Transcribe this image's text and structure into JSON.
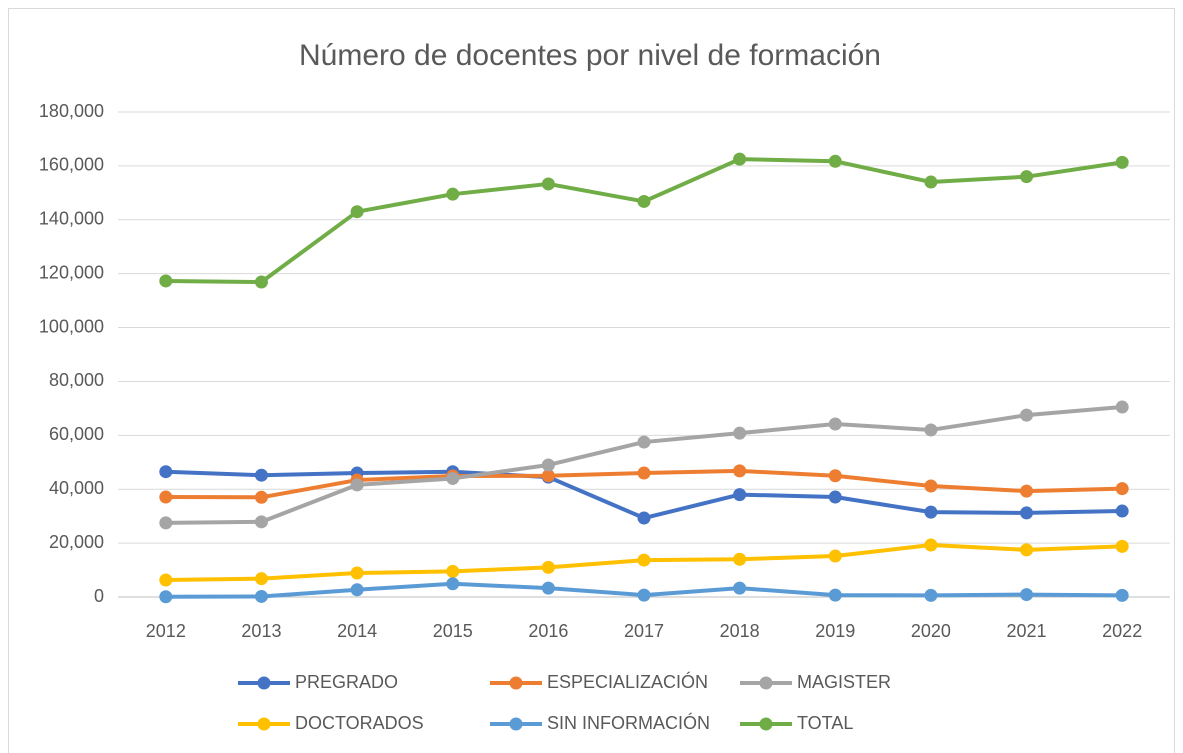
{
  "chart_data": {
    "type": "line",
    "title": "Número de docentes por nivel de formación",
    "categories": [
      "2012",
      "2013",
      "2014",
      "2015",
      "2016",
      "2017",
      "2018",
      "2019",
      "2020",
      "2021",
      "2022"
    ],
    "series": [
      {
        "name": "PREGRADO",
        "color": "#4472c4",
        "values": [
          46500,
          45200,
          46000,
          46500,
          44500,
          29300,
          38000,
          37100,
          31500,
          31200,
          31900
        ]
      },
      {
        "name": "ESPECIALIZACIÓN",
        "color": "#ed7d31",
        "values": [
          37100,
          37000,
          43400,
          44900,
          45000,
          46000,
          46800,
          45000,
          41200,
          39300,
          40200
        ]
      },
      {
        "name": "MAGISTER",
        "color": "#a5a5a5",
        "values": [
          27500,
          27900,
          41600,
          44000,
          49000,
          57500,
          60800,
          64200,
          62000,
          67500,
          70500
        ]
      },
      {
        "name": "DOCTORADOS",
        "color": "#ffc000",
        "values": [
          6300,
          6800,
          8900,
          9500,
          11000,
          13700,
          14000,
          15200,
          19300,
          17500,
          18800
        ]
      },
      {
        "name": "SIN INFORMACIÓN",
        "color": "#5b9bd5",
        "values": [
          100,
          200,
          2700,
          4900,
          3300,
          700,
          3300,
          700,
          600,
          900,
          600
        ]
      },
      {
        "name": "TOTAL",
        "color": "#70ad47",
        "values": [
          117300,
          116900,
          143000,
          149500,
          153300,
          146800,
          162500,
          161700,
          154000,
          156000,
          161300
        ]
      }
    ],
    "ylim": [
      0,
      180000
    ],
    "yticks": [
      0,
      {
        "value": 20000,
        "label": "20,000"
      },
      {
        "value": 40000,
        "label": "40,000"
      },
      {
        "value": 60000,
        "label": "60,000"
      },
      {
        "value": 80000,
        "label": "80,000"
      },
      {
        "value": 100000,
        "label": "100,000"
      },
      {
        "value": 120000,
        "label": "120,000"
      },
      {
        "value": 140000,
        "label": "140,000"
      },
      {
        "value": 160000,
        "label": "160,000"
      },
      {
        "value": 180000,
        "label": "180,000"
      }
    ],
    "grid": true,
    "legend": "bottom"
  }
}
